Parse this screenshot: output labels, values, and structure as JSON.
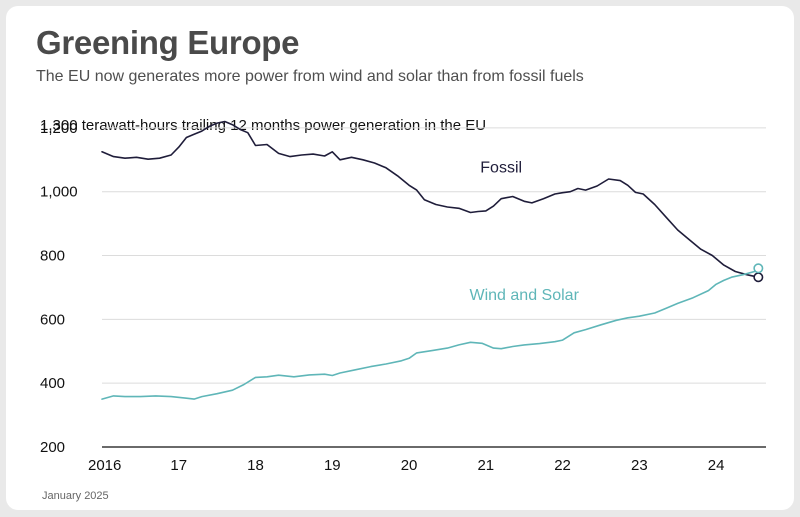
{
  "header": {
    "title": "Greening Europe",
    "subtitle": "The EU now generates more power from wind and solar than from fossil fuels"
  },
  "footer": {
    "date": "January 2025"
  },
  "colors": {
    "fossil": "#1f1d3a",
    "wind_solar": "#5fb6b8",
    "grid": "#dcdcdc",
    "axis": "#111111"
  },
  "chart_data": {
    "type": "line",
    "title": "1,300 terawatt-hours trailing 12 months power generation in the EU",
    "xlabel": "",
    "ylabel": "",
    "ylim": [
      200,
      1300
    ],
    "xlim": [
      2016,
      2024.65
    ],
    "yticks": [
      200,
      400,
      600,
      800,
      1000,
      1200
    ],
    "ytick_labels": [
      "200",
      "400",
      "600",
      "800",
      "1,000",
      "1,200"
    ],
    "xticks": [
      2016,
      2017,
      2018,
      2019,
      2020,
      2021,
      2022,
      2023,
      2024
    ],
    "xtick_labels": [
      "2016",
      "17",
      "18",
      "19",
      "20",
      "21",
      "22",
      "23",
      "24"
    ],
    "grid": true,
    "series": [
      {
        "name": "Fossil",
        "x": [
          2016.0,
          2016.15,
          2016.3,
          2016.45,
          2016.6,
          2016.75,
          2016.9,
          2017.0,
          2017.1,
          2017.2,
          2017.3,
          2017.4,
          2017.5,
          2017.6,
          2017.7,
          2017.8,
          2017.9,
          2018.0,
          2018.15,
          2018.3,
          2018.45,
          2018.6,
          2018.75,
          2018.9,
          2019.0,
          2019.1,
          2019.25,
          2019.4,
          2019.55,
          2019.7,
          2019.85,
          2020.0,
          2020.1,
          2020.2,
          2020.35,
          2020.5,
          2020.65,
          2020.8,
          2020.9,
          2021.0,
          2021.1,
          2021.2,
          2021.35,
          2021.5,
          2021.6,
          2021.75,
          2021.9,
          2022.0,
          2022.1,
          2022.2,
          2022.3,
          2022.45,
          2022.6,
          2022.75,
          2022.85,
          2022.95,
          2023.05,
          2023.2,
          2023.35,
          2023.5,
          2023.65,
          2023.8,
          2023.95,
          2024.1,
          2024.25,
          2024.4,
          2024.55
        ],
        "values": [
          1125,
          1110,
          1105,
          1108,
          1102,
          1105,
          1115,
          1140,
          1170,
          1180,
          1190,
          1205,
          1215,
          1220,
          1210,
          1195,
          1185,
          1145,
          1148,
          1120,
          1110,
          1115,
          1118,
          1112,
          1125,
          1100,
          1108,
          1100,
          1090,
          1075,
          1050,
          1020,
          1005,
          975,
          960,
          952,
          948,
          935,
          938,
          940,
          955,
          978,
          985,
          970,
          965,
          978,
          993,
          997,
          1000,
          1010,
          1005,
          1018,
          1040,
          1035,
          1020,
          998,
          993,
          960,
          920,
          880,
          850,
          820,
          800,
          770,
          750,
          740,
          732
        ]
      },
      {
        "name": "Wind and Solar",
        "x": [
          2016.0,
          2016.15,
          2016.3,
          2016.5,
          2016.7,
          2016.9,
          2017.1,
          2017.2,
          2017.3,
          2017.5,
          2017.7,
          2017.85,
          2018.0,
          2018.15,
          2018.3,
          2018.5,
          2018.7,
          2018.9,
          2019.0,
          2019.1,
          2019.3,
          2019.5,
          2019.7,
          2019.9,
          2020.0,
          2020.1,
          2020.3,
          2020.5,
          2020.65,
          2020.8,
          2020.95,
          2021.1,
          2021.2,
          2021.35,
          2021.5,
          2021.7,
          2021.9,
          2022.0,
          2022.15,
          2022.3,
          2022.5,
          2022.7,
          2022.85,
          2023.0,
          2023.2,
          2023.35,
          2023.5,
          2023.7,
          2023.9,
          2024.0,
          2024.1,
          2024.2,
          2024.35,
          2024.5,
          2024.55
        ],
        "values": [
          350,
          360,
          358,
          358,
          360,
          358,
          353,
          350,
          358,
          367,
          378,
          396,
          418,
          420,
          425,
          420,
          426,
          428,
          424,
          432,
          442,
          452,
          460,
          470,
          478,
          495,
          502,
          510,
          520,
          528,
          525,
          510,
          508,
          515,
          520,
          524,
          530,
          535,
          558,
          568,
          583,
          597,
          605,
          610,
          620,
          635,
          650,
          668,
          690,
          710,
          722,
          732,
          740,
          750,
          760
        ]
      }
    ]
  }
}
